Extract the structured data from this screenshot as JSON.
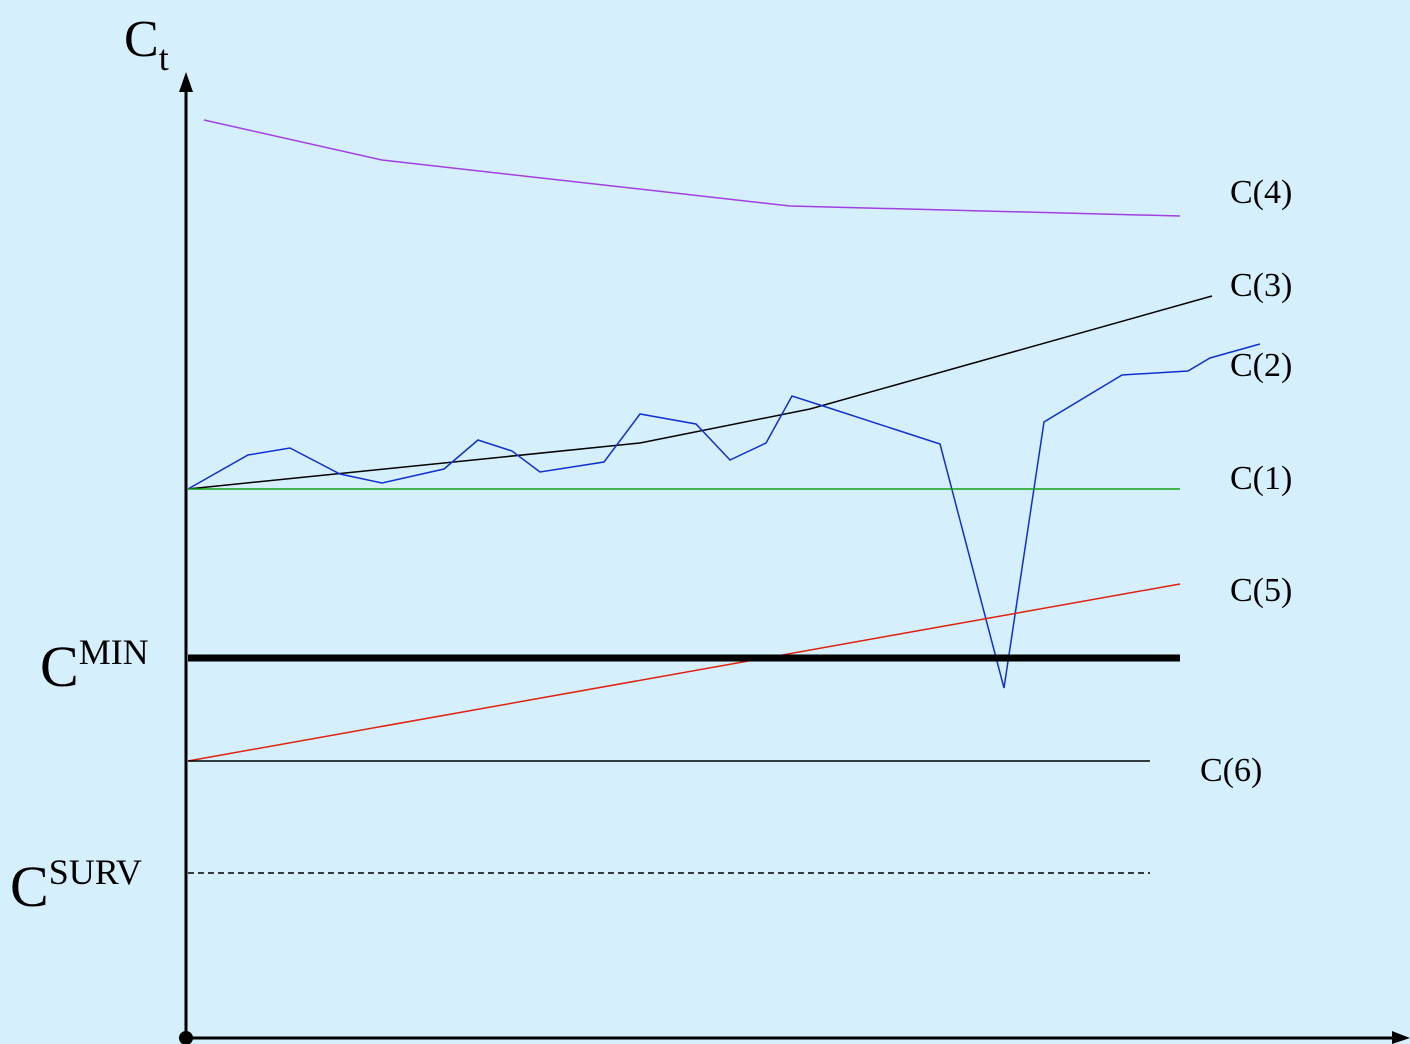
{
  "y_axis_label": {
    "base": "C",
    "sub": "t"
  },
  "curves": [
    {
      "label": "C(4)"
    },
    {
      "label": "C(3)"
    },
    {
      "label": "C(2)"
    },
    {
      "label": "C(1)"
    },
    {
      "label": "C(5)"
    },
    {
      "label": "C(6)"
    }
  ],
  "thresholds": [
    {
      "base": "C",
      "sup": "MIN"
    },
    {
      "base": "C",
      "sup": "SURV"
    }
  ]
}
